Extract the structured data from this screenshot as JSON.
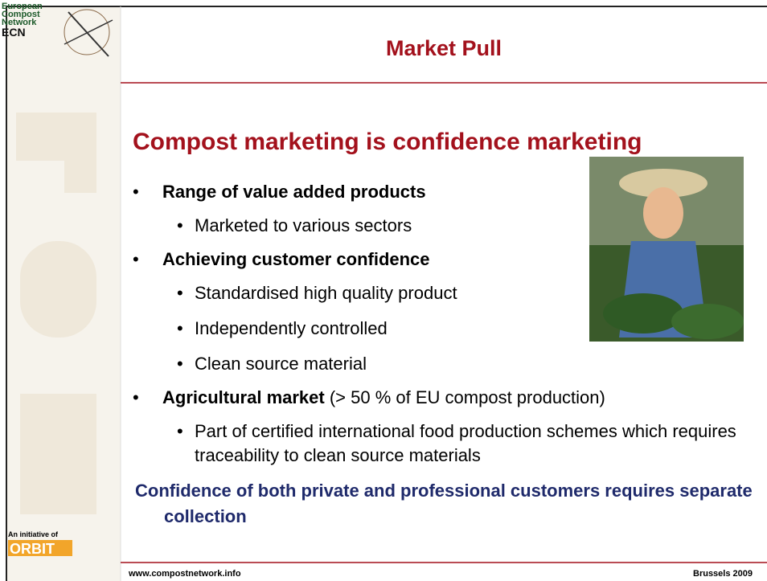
{
  "logo": {
    "lines": [
      "European",
      "Compost",
      "Network",
      "ECN"
    ]
  },
  "header": {
    "title": "Market Pull"
  },
  "slide": {
    "heading": "Compost marketing is confidence marketing",
    "bullets": [
      {
        "text": "Range of value added products",
        "children": [
          "Marketed to various sectors"
        ]
      },
      {
        "text": "Achieving customer confidence",
        "children": [
          "Standardised high quality product",
          "Independently controlled",
          "Clean source material"
        ]
      },
      {
        "text": "Agricultural market",
        "note": "(> 50 % of EU compost production)",
        "children": [
          "Part of certified international food production schemes which requires traceability to clean source materials"
        ]
      }
    ],
    "conclusion": "Confidence of both private and professional customers requires separate collection"
  },
  "sidebar": {
    "initiative": "An initiative of",
    "org": "ORBIT"
  },
  "footer": {
    "left": "www.compostnetwork.info",
    "right": "Brussels 2009"
  }
}
